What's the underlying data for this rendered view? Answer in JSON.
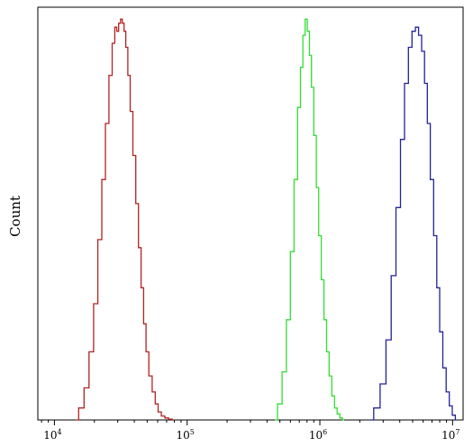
{
  "chart_data": {
    "type": "line",
    "title": "",
    "xlabel": "",
    "ylabel": "Count",
    "x_scale": "log",
    "xlim": [
      7500,
      12000000
    ],
    "ylim": [
      0,
      1.03
    ],
    "grid": false,
    "legend": "none",
    "x_ticks": [
      {
        "value": 10000,
        "base": "10",
        "exp": "4"
      },
      {
        "value": 100000,
        "base": "10",
        "exp": "5"
      },
      {
        "value": 1000000,
        "base": "10",
        "exp": "6"
      },
      {
        "value": 10000000,
        "base": "10",
        "exp": "7"
      }
    ],
    "series": [
      {
        "color": "#b22222",
        "x": [
          14500,
          16000,
          17500,
          19000,
          20500,
          22000,
          23500,
          25000,
          26500,
          28000,
          29000,
          30000,
          31000,
          32000,
          33000,
          34000,
          35000,
          36500,
          38000,
          40000,
          42000,
          44000,
          46000,
          48000,
          50000,
          53000,
          56000,
          59000,
          62000,
          66000,
          70000,
          75000,
          80000
        ],
        "y": [
          0.0,
          0.03,
          0.08,
          0.17,
          0.29,
          0.45,
          0.6,
          0.74,
          0.86,
          0.94,
          0.98,
          0.97,
          0.99,
          1.0,
          0.99,
          0.97,
          0.93,
          0.86,
          0.77,
          0.66,
          0.54,
          0.43,
          0.33,
          0.24,
          0.17,
          0.11,
          0.07,
          0.04,
          0.02,
          0.01,
          0.005,
          0.002,
          0.0
        ]
      },
      {
        "color": "#33dd33",
        "x": [
          460000,
          500000,
          540000,
          580000,
          620000,
          660000,
          700000,
          730000,
          760000,
          790000,
          820000,
          850000,
          880000,
          920000,
          960000,
          1000000,
          1050000,
          1100000,
          1150000,
          1200000,
          1260000,
          1320000,
          1380000,
          1450000,
          1520000
        ],
        "y": [
          0.0,
          0.04,
          0.12,
          0.25,
          0.42,
          0.6,
          0.78,
          0.88,
          0.96,
          1.0,
          0.97,
          0.91,
          0.83,
          0.71,
          0.58,
          0.46,
          0.35,
          0.25,
          0.17,
          0.11,
          0.06,
          0.03,
          0.015,
          0.005,
          0.0
        ]
      },
      {
        "color": "#222299",
        "x": [
          2400000,
          2700000,
          3000000,
          3300000,
          3600000,
          3900000,
          4200000,
          4500000,
          4800000,
          5100000,
          5400000,
          5700000,
          6000000,
          6300000,
          6600000,
          7000000,
          7400000,
          7800000,
          8200000,
          8700000,
          9200000,
          9700000,
          10200000,
          10800000
        ],
        "y": [
          0.0,
          0.03,
          0.09,
          0.2,
          0.36,
          0.53,
          0.7,
          0.84,
          0.93,
          0.97,
          0.98,
          0.96,
          0.92,
          0.84,
          0.74,
          0.6,
          0.46,
          0.33,
          0.22,
          0.13,
          0.07,
          0.035,
          0.012,
          0.0
        ]
      }
    ]
  }
}
